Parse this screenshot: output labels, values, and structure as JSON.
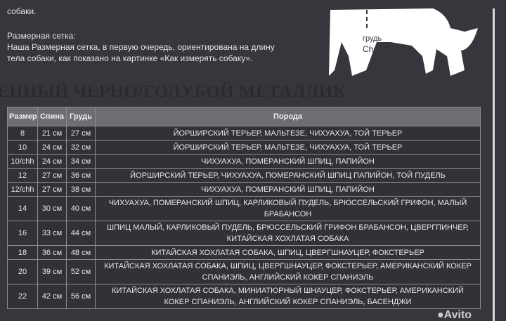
{
  "intro_tail": "собаки.",
  "size_grid_title": "Размерная сетка:",
  "size_grid_text_1": "Наша Размерная сетка, в первую очередь, ориентирована на длину",
  "size_grid_text_2": "тела собаки, как показано на картинке «Как измерять собаку».",
  "image_labels": {
    "ru": "грудь",
    "en": "Chest"
  },
  "heading": "ЕННЫЙ ЧЕРНО/ГОЛУБОЙ МЕТАЛЛИК",
  "table": {
    "headers": [
      "Размер",
      "Спина",
      "Грудь",
      "Порода"
    ],
    "rows": [
      [
        "8",
        "21 см",
        "27 см",
        "ЙОРШИРСКИЙ ТЕРЬЕР, МАЛЬТЕЗЕ, ЧИХУАХУА, ТОЙ ТЕРЬЕР"
      ],
      [
        "10",
        "24 см",
        "32 см",
        "ЙОРШИРСКИЙ ТЕРЬЕР, МАЛЬТЕЗЕ, ЧИХУАХУА, ТОЙ ТЕРЬЕР"
      ],
      [
        "10/chh",
        "24 см",
        "34 см",
        "ЧИХУАХУА, ПОМЕРАНСКИЙ ШПИЦ, ПАПИЙОН"
      ],
      [
        "12",
        "27 см",
        "36 см",
        "ЙОРШИРСКИЙ ТЕРЬЕР, ЧИХУАХУА, ПОМЕРАНСКИЙ ШПИЦ ПАПИЙОН, ТОЙ ПУДЕЛЬ"
      ],
      [
        "12/chh",
        "27 см",
        "38 см",
        "ЧИХУАХУА, ПОМЕРАНСКИЙ ШПИЦ, ПАПИЙОН"
      ],
      [
        "14",
        "30 см",
        "40 см",
        "ЧИХУАХУА, ПОМЕРАНСКИЙ ШПИЦ, КАРЛИКОВЫЙ ПУДЕЛЬ, БРЮССЕЛЬСКИЙ ГРИФОН, МАЛЫЙ БРАБАНСОН"
      ],
      [
        "16",
        "33 см",
        "44 см",
        "ШПИЦ МАЛЫЙ, КАРЛИКОВЫЙ ПУДЕЛЬ, БРЮССЕЛЬСКИЙ ГРИФОН БРАБАНСОН, ЦВЕРГПИНЧЕР, КИТАЙСКАЯ ХОХЛАТАЯ СОБАКА"
      ],
      [
        "18",
        "36 см",
        "48 см",
        "КИТАЙСКАЯ ХОХЛАТАЯ СОБАКА, ШПИЦ, ЦВЕРГШНАУЦЕР, ФОКСТЕРЬЕР"
      ],
      [
        "20",
        "39 см",
        "52 см",
        "КИТАЙСКАЯ ХОХЛАТАЯ СОБАКА, ШПИЦ, ЦВЕРГШНАУЦЕР, ФОКСТЕРЬЕР, АМЕРИКАНСКИЙ КОКЕР СПАНИЭЛЬ, АНГЛИЙСКИЙ КОКЕР СПАНИЭЛЬ"
      ],
      [
        "22",
        "42 см",
        "56 см",
        "КИТАЙСКАЯ ХОХЛАТАЯ СОБАКА, МИНИАТЮРНЫЙ ШНАУЦЕР, ФОКСТЕРЬЕР, АМЕРИКАНСКИЙ КОКЕР СПАНИЭЛЬ, АНГЛИЙСКИЙ КОКЕР СПАНИЭЛЬ, БАСЕНДЖИ"
      ]
    ]
  },
  "watermark": "Avito"
}
